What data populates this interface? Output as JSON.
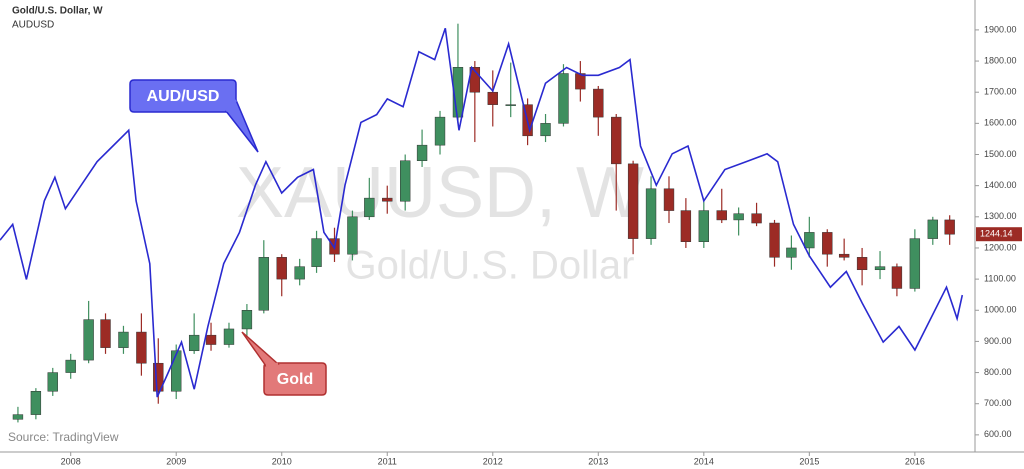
{
  "chart_data": {
    "type": "candlestick",
    "watermark": [
      "XAUUSD, W",
      "Gold/U.S. Dollar"
    ],
    "source": "Source: TradingView",
    "xlim": [
      2007.33,
      2016.57
    ],
    "xticks": [
      2008,
      2009,
      2010,
      2011,
      2012,
      2013,
      2014,
      2015,
      2016
    ],
    "ylim": [
      545,
      1996
    ],
    "yticks": [
      {
        "value": 600,
        "label": "600.00"
      },
      {
        "value": 700,
        "label": "700.00"
      },
      {
        "value": 800,
        "label": "800.00"
      },
      {
        "value": 900,
        "label": "900.00"
      },
      {
        "value": 1000,
        "label": "1000.00"
      },
      {
        "value": 1100,
        "label": "1100.00"
      },
      {
        "value": 1200,
        "label": "1200.00"
      },
      {
        "value": 1300,
        "label": "1300.00"
      },
      {
        "value": 1400,
        "label": "1400.00"
      },
      {
        "value": 1500,
        "label": "1500.00"
      },
      {
        "value": 1600,
        "label": "1600.00"
      },
      {
        "value": 1700,
        "label": "1700.00"
      },
      {
        "value": 1800,
        "label": "1800.00"
      },
      {
        "value": 1900,
        "label": "1900.00"
      }
    ],
    "y2lim": [
      0.56,
      1.136
    ],
    "series": [
      {
        "name": "Gold/U.S. Dollar, W",
        "up_color": "#3f8f5f",
        "down_color": "#9c2b25",
        "x": [
          2007.5,
          2007.67,
          2007.83,
          2008,
          2008.17,
          2008.33,
          2008.5,
          2008.67,
          2008.83,
          2009,
          2009.17,
          2009.33,
          2009.5,
          2009.67,
          2009.83,
          2010,
          2010.17,
          2010.33,
          2010.5,
          2010.67,
          2010.83,
          2011,
          2011.17,
          2011.33,
          2011.5,
          2011.67,
          2011.83,
          2012,
          2012.17,
          2012.33,
          2012.5,
          2012.67,
          2012.83,
          2013,
          2013.17,
          2013.33,
          2013.5,
          2013.67,
          2013.83,
          2014,
          2014.17,
          2014.33,
          2014.5,
          2014.67,
          2014.83,
          2015,
          2015.17,
          2015.33,
          2015.5,
          2015.67,
          2015.83,
          2016,
          2016.17,
          2016.33
        ],
        "open": [
          650,
          665,
          740,
          800,
          840,
          970,
          880,
          930,
          830,
          740,
          870,
          920,
          890,
          940,
          1000,
          1170,
          1100,
          1140,
          1230,
          1180,
          1300,
          1360,
          1350,
          1480,
          1530,
          1620,
          1780,
          1700,
          1660,
          1660,
          1560,
          1600,
          1760,
          1710,
          1620,
          1470,
          1230,
          1390,
          1320,
          1220,
          1320,
          1290,
          1310,
          1280,
          1170,
          1200,
          1250,
          1180,
          1170,
          1130,
          1140,
          1070,
          1230,
          1290
        ],
        "high": [
          690,
          750,
          815,
          860,
          1030,
          990,
          950,
          990,
          910,
          890,
          990,
          960,
          960,
          1020,
          1225,
          1180,
          1165,
          1255,
          1265,
          1320,
          1425,
          1400,
          1500,
          1580,
          1640,
          1920,
          1800,
          1770,
          1795,
          1680,
          1630,
          1790,
          1800,
          1720,
          1630,
          1480,
          1430,
          1430,
          1360,
          1350,
          1390,
          1330,
          1345,
          1290,
          1240,
          1300,
          1260,
          1230,
          1200,
          1190,
          1150,
          1260,
          1300,
          1305
        ],
        "low": [
          640,
          650,
          725,
          780,
          830,
          860,
          860,
          790,
          700,
          715,
          860,
          870,
          880,
          910,
          990,
          1045,
          1080,
          1120,
          1155,
          1160,
          1290,
          1310,
          1320,
          1460,
          1500,
          1600,
          1540,
          1590,
          1620,
          1530,
          1540,
          1590,
          1670,
          1560,
          1320,
          1180,
          1210,
          1280,
          1200,
          1200,
          1280,
          1240,
          1270,
          1140,
          1130,
          1170,
          1140,
          1160,
          1080,
          1100,
          1045,
          1060,
          1210,
          1210
        ],
        "close": [
          665,
          740,
          800,
          840,
          970,
          880,
          930,
          830,
          740,
          870,
          920,
          890,
          940,
          1000,
          1170,
          1100,
          1140,
          1230,
          1180,
          1300,
          1360,
          1350,
          1480,
          1530,
          1620,
          1780,
          1700,
          1660,
          1660,
          1560,
          1600,
          1760,
          1710,
          1620,
          1470,
          1230,
          1390,
          1320,
          1220,
          1320,
          1290,
          1310,
          1280,
          1170,
          1200,
          1250,
          1180,
          1170,
          1130,
          1140,
          1070,
          1230,
          1290,
          1244.14
        ]
      },
      {
        "name": "AUDUSD",
        "axis": "y2",
        "color": "#2a2ad0",
        "x": [
          2007.33,
          2007.45,
          2007.58,
          2007.75,
          2007.85,
          2007.95,
          2008.1,
          2008.25,
          2008.4,
          2008.55,
          2008.62,
          2008.75,
          2008.82,
          2008.92,
          2009.05,
          2009.17,
          2009.3,
          2009.45,
          2009.6,
          2009.75,
          2009.85,
          2010,
          2010.15,
          2010.3,
          2010.4,
          2010.5,
          2010.6,
          2010.75,
          2010.9,
          2011,
          2011.15,
          2011.3,
          2011.45,
          2011.55,
          2011.68,
          2011.8,
          2012,
          2012.15,
          2012.35,
          2012.5,
          2012.7,
          2012.85,
          2013,
          2013.2,
          2013.3,
          2013.4,
          2013.55,
          2013.7,
          2013.85,
          2014,
          2014.2,
          2014.4,
          2014.6,
          2014.7,
          2014.85,
          2015,
          2015.2,
          2015.35,
          2015.5,
          2015.7,
          2015.85,
          2016,
          2016.15,
          2016.3,
          2016.4,
          2016.45
        ],
        "values": [
          0.83,
          0.85,
          0.78,
          0.88,
          0.91,
          0.87,
          0.9,
          0.93,
          0.95,
          0.97,
          0.88,
          0.8,
          0.63,
          0.66,
          0.7,
          0.64,
          0.72,
          0.8,
          0.84,
          0.9,
          0.93,
          0.89,
          0.91,
          0.92,
          0.84,
          0.82,
          0.9,
          0.98,
          0.99,
          1.01,
          1,
          1.07,
          1.06,
          1.1,
          0.97,
          1.05,
          1.02,
          1.08,
          0.97,
          1.03,
          1.05,
          1.04,
          1.04,
          1.05,
          1.06,
          0.95,
          0.9,
          0.94,
          0.95,
          0.88,
          0.92,
          0.93,
          0.94,
          0.93,
          0.85,
          0.81,
          0.77,
          0.79,
          0.75,
          0.7,
          0.72,
          0.69,
          0.73,
          0.77,
          0.73,
          0.76
        ]
      }
    ],
    "annotations": [
      {
        "text": "AUD/USD",
        "color": "#6a6ff2"
      },
      {
        "text": "Gold",
        "color": "#e27979"
      }
    ]
  }
}
